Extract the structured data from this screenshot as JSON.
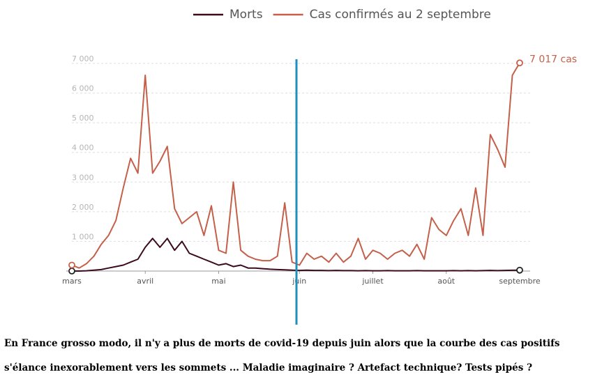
{
  "chart_data": {
    "type": "line",
    "categories": [
      "mars",
      null,
      null,
      null,
      null,
      null,
      null,
      null,
      null,
      null,
      "avril",
      null,
      null,
      null,
      null,
      null,
      null,
      null,
      null,
      null,
      "mai",
      null,
      null,
      null,
      null,
      null,
      null,
      null,
      null,
      null,
      null,
      "juin",
      null,
      null,
      null,
      null,
      null,
      null,
      null,
      null,
      null,
      "juillet",
      null,
      null,
      null,
      null,
      null,
      null,
      null,
      null,
      null,
      "août",
      null,
      null,
      null,
      null,
      null,
      null,
      null,
      null,
      null,
      "septembre"
    ],
    "series": [
      {
        "name": "Morts",
        "color": "#3b0a1f",
        "values": [
          0,
          0,
          10,
          30,
          50,
          100,
          150,
          200,
          300,
          400,
          800,
          1100,
          800,
          1100,
          700,
          1000,
          600,
          500,
          400,
          300,
          200,
          250,
          150,
          200,
          100,
          100,
          80,
          60,
          50,
          40,
          30,
          20,
          30,
          20,
          20,
          15,
          20,
          15,
          15,
          10,
          15,
          10,
          10,
          15,
          10,
          10,
          10,
          15,
          10,
          10,
          10,
          10,
          15,
          10,
          15,
          10,
          15,
          20,
          15,
          20,
          25,
          30
        ]
      },
      {
        "name": "Cas confirmés au 2 septembre",
        "color": "#c4604a",
        "values": [
          200,
          100,
          250,
          500,
          900,
          1200,
          1700,
          2800,
          3800,
          3300,
          6600,
          3300,
          3700,
          4200,
          2100,
          1600,
          1800,
          2000,
          1200,
          2200,
          700,
          600,
          3000,
          700,
          500,
          400,
          350,
          350,
          500,
          2300,
          300,
          200,
          600,
          400,
          500,
          300,
          600,
          300,
          500,
          1100,
          400,
          700,
          600,
          400,
          600,
          700,
          500,
          900,
          400,
          1800,
          1400,
          1200,
          1700,
          2100,
          1200,
          2800,
          1200,
          4600,
          4100,
          3500,
          6600,
          7017
        ]
      }
    ],
    "annotation": "7 017 cas",
    "ylim": [
      0,
      7000
    ],
    "yticks": [
      {
        "value": 1000,
        "label": "1 000"
      },
      {
        "value": 2000,
        "label": "2 000"
      },
      {
        "value": 3000,
        "label": "3 000"
      },
      {
        "value": 4000,
        "label": "4 000"
      },
      {
        "value": 5000,
        "label": "5 000"
      },
      {
        "value": 6000,
        "label": "6 000"
      },
      {
        "value": 7000,
        "label": "7 000"
      }
    ],
    "grid": true
  },
  "caption": [
    "En France grosso modo, il n'y a plus de morts de covid-19 depuis juin alors que la courbe des cas positifs",
    "s'élance inexorablement vers les sommets ... Maladie imaginaire ? Artefact technique? Tests pipés ?"
  ]
}
